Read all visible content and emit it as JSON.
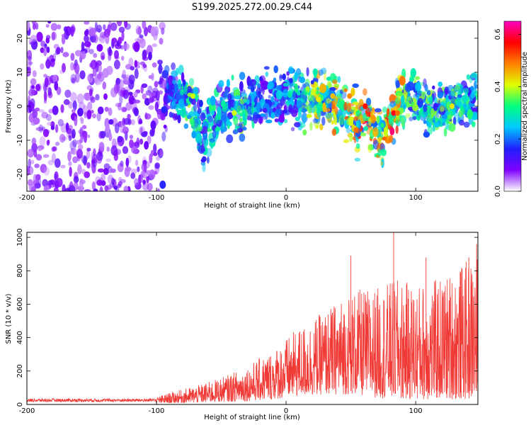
{
  "title": "S199.2025.272.00.29.C44",
  "chart_data": [
    {
      "type": "heatmap",
      "name": "spectrogram",
      "xlabel": "Height of straight line (km)",
      "ylabel": "Frequency (Hz)",
      "xlim": [
        -200,
        148
      ],
      "ylim": [
        -25,
        25
      ],
      "xticks": [
        -200,
        -100,
        0,
        100
      ],
      "yticks": [
        -20,
        -10,
        0,
        10,
        20
      ],
      "colorbar": {
        "label": "Normalized spectral amplitude",
        "range": [
          0.0,
          0.65
        ],
        "ticks": [
          0.0,
          0.2,
          0.4,
          0.6
        ],
        "tick_labels": [
          "0.0",
          "0.2",
          "0.4",
          "0.6"
        ],
        "colors": [
          "#ffffff",
          "#7f00ff",
          "#2020ff",
          "#00c8ff",
          "#00ff80",
          "#e0ff00",
          "#ff8000",
          "#ff0000",
          "#ff00c0"
        ]
      },
      "ridge": [
        {
          "x": -200,
          "freq": 0,
          "width": 25,
          "amp": 0.1
        },
        {
          "x": -100,
          "freq": 0,
          "width": 25,
          "amp": 0.1
        },
        {
          "x": -90,
          "freq": 4,
          "width": 6,
          "amp": 0.2
        },
        {
          "x": -75,
          "freq": 1,
          "width": 7,
          "amp": 0.35
        },
        {
          "x": -65,
          "freq": -8,
          "width": 9,
          "amp": 0.3
        },
        {
          "x": -45,
          "freq": 0,
          "width": 8,
          "amp": 0.28
        },
        {
          "x": -35,
          "freq": -1,
          "width": 8,
          "amp": 0.35
        },
        {
          "x": -20,
          "freq": 2,
          "width": 8,
          "amp": 0.22
        },
        {
          "x": 0,
          "freq": 3,
          "width": 7,
          "amp": 0.25
        },
        {
          "x": 20,
          "freq": 2,
          "width": 7,
          "amp": 0.4
        },
        {
          "x": 40,
          "freq": 1,
          "width": 7,
          "amp": 0.45
        },
        {
          "x": 55,
          "freq": -6,
          "width": 8,
          "amp": 0.5
        },
        {
          "x": 60,
          "freq": -1,
          "width": 6,
          "amp": 0.55
        },
        {
          "x": 75,
          "freq": -10,
          "width": 9,
          "amp": 0.45
        },
        {
          "x": 82,
          "freq": -3,
          "width": 6,
          "amp": 0.55
        },
        {
          "x": 95,
          "freq": 4,
          "width": 7,
          "amp": 0.35
        },
        {
          "x": 110,
          "freq": 0,
          "width": 7,
          "amp": 0.35
        },
        {
          "x": 125,
          "freq": 0,
          "width": 7,
          "amp": 0.35
        },
        {
          "x": 140,
          "freq": 2,
          "width": 7,
          "amp": 0.3
        }
      ],
      "hotspots": [
        {
          "x": -72,
          "freq": 3,
          "amp": 0.4
        },
        {
          "x": -40,
          "freq": -2,
          "amp": 0.4
        },
        {
          "x": 25,
          "freq": 2,
          "amp": 0.42
        },
        {
          "x": 36,
          "freq": 3,
          "amp": 0.45
        },
        {
          "x": 49,
          "freq": 3,
          "amp": 0.48
        },
        {
          "x": 54,
          "freq": -7,
          "amp": 0.5
        },
        {
          "x": 61,
          "freq": 0,
          "amp": 0.56
        },
        {
          "x": 83,
          "freq": -2,
          "amp": 0.58
        },
        {
          "x": 86,
          "freq": -2,
          "amp": 0.5
        },
        {
          "x": 128,
          "freq": 0,
          "amp": 0.42
        }
      ]
    },
    {
      "type": "line",
      "name": "snr",
      "xlabel": "Height of straight line (km)",
      "ylabel": "SNR (10 * v/v)",
      "xlim": [
        -200,
        148
      ],
      "ylim": [
        0,
        1030
      ],
      "xticks": [
        -200,
        -100,
        0,
        100
      ],
      "yticks": [
        0,
        200,
        400,
        600,
        800,
        1000
      ],
      "color": "#f03a36",
      "envelope": [
        {
          "x": -200,
          "min": 5,
          "max": 45
        },
        {
          "x": -100,
          "min": 5,
          "max": 45
        },
        {
          "x": -90,
          "min": 8,
          "max": 70
        },
        {
          "x": -70,
          "min": 10,
          "max": 110
        },
        {
          "x": -50,
          "min": 15,
          "max": 160
        },
        {
          "x": -30,
          "min": 20,
          "max": 230
        },
        {
          "x": -10,
          "min": 30,
          "max": 330
        },
        {
          "x": 10,
          "min": 50,
          "max": 460
        },
        {
          "x": 30,
          "min": 60,
          "max": 560
        },
        {
          "x": 50,
          "min": 60,
          "max": 680
        },
        {
          "x": 70,
          "min": 40,
          "max": 700
        },
        {
          "x": 85,
          "min": 30,
          "max": 750
        },
        {
          "x": 100,
          "min": 30,
          "max": 720
        },
        {
          "x": 120,
          "min": 30,
          "max": 760
        },
        {
          "x": 148,
          "min": 30,
          "max": 900
        }
      ],
      "peaks": [
        {
          "x": 83,
          "y": 1030
        },
        {
          "x": 147,
          "y": 960
        },
        {
          "x": 141,
          "y": 880
        },
        {
          "x": 50,
          "y": 890
        },
        {
          "x": 108,
          "y": 880
        }
      ]
    }
  ]
}
